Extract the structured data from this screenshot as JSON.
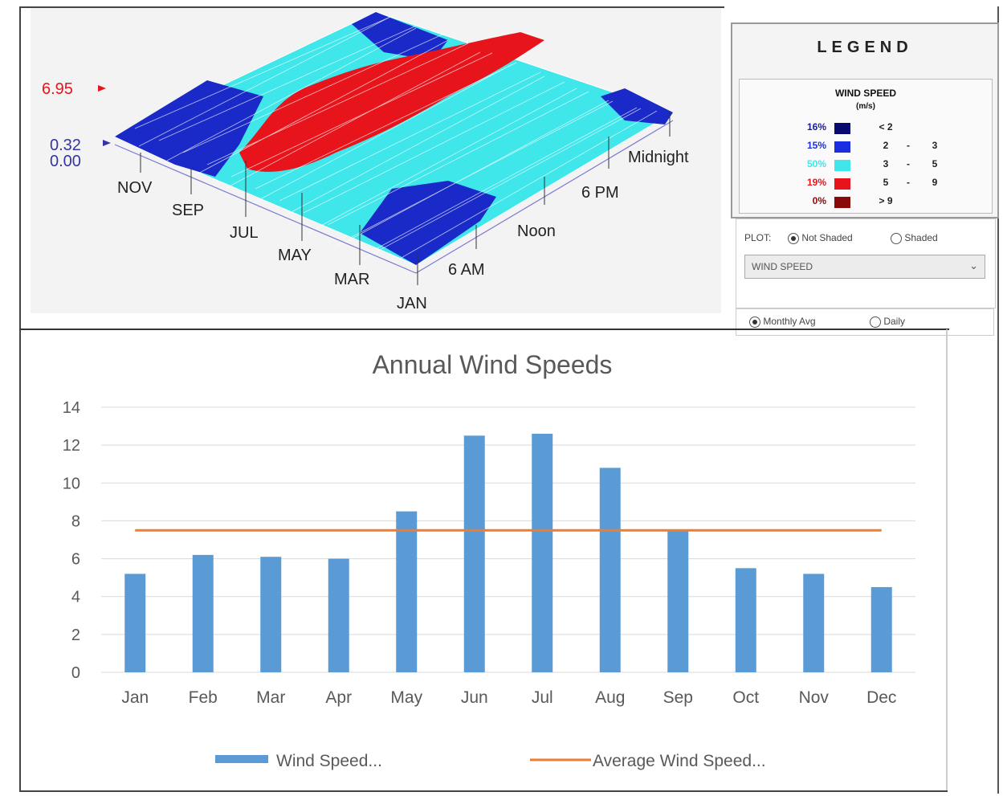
{
  "surface": {
    "value_marker_max": "6.95",
    "value_marker_mid": "0.32",
    "value_marker_min": "0.00",
    "month_labels": [
      "NOV",
      "SEP",
      "JUL",
      "MAY",
      "MAR",
      "JAN"
    ],
    "hour_labels": [
      "Midnight",
      "6 PM",
      "Noon",
      "6 AM"
    ]
  },
  "legend": {
    "title": "LEGEND",
    "heading": "WIND SPEED",
    "unit": "(m/s)",
    "rows": [
      {
        "pct": "16%",
        "color": "#0a0a6e",
        "r1": "< 2",
        "dash": "",
        "r2": "",
        "pct_color": "#1a1aa0"
      },
      {
        "pct": "15%",
        "color": "#1a2ee0",
        "r1": "2",
        "dash": "-",
        "r2": "3",
        "pct_color": "#1a2ee0"
      },
      {
        "pct": "50%",
        "color": "#3fe6ea",
        "r1": "3",
        "dash": "-",
        "r2": "5",
        "pct_color": "#3fe6ea"
      },
      {
        "pct": "19%",
        "color": "#e8141c",
        "r1": "5",
        "dash": "-",
        "r2": "9",
        "pct_color": "#e8141c"
      },
      {
        "pct": "0%",
        "color": "#8a0a0a",
        "r1": "> 9",
        "dash": "",
        "r2": "",
        "pct_color": "#8a0a0a"
      }
    ]
  },
  "plot_controls": {
    "label": "PLOT:",
    "option_not_shaded": "Not Shaded",
    "option_shaded": "Shaded",
    "selected_variable": "WIND SPEED",
    "option_monthly": "Monthly Avg",
    "option_daily": "Daily"
  },
  "chart_data": {
    "type": "bar",
    "title": "Annual Wind Speeds",
    "categories": [
      "Jan",
      "Feb",
      "Mar",
      "Apr",
      "May",
      "Jun",
      "Jul",
      "Aug",
      "Sep",
      "Oct",
      "Nov",
      "Dec"
    ],
    "series": [
      {
        "name": "Wind Speed...",
        "type": "bar",
        "color": "#5b9bd5",
        "values": [
          5.2,
          6.2,
          6.1,
          6.0,
          8.5,
          12.5,
          12.6,
          10.8,
          7.5,
          5.5,
          5.2,
          4.5
        ]
      },
      {
        "name": "Average Wind Speed...",
        "type": "line",
        "color": "#ed7d31",
        "values": [
          7.5,
          7.5,
          7.5,
          7.5,
          7.5,
          7.5,
          7.5,
          7.5,
          7.5,
          7.5,
          7.5,
          7.5
        ]
      }
    ],
    "ylim": [
      0,
      14
    ],
    "yticks": [
      0,
      2,
      4,
      6,
      8,
      10,
      12,
      14
    ],
    "grid": true,
    "legend_position": "bottom"
  }
}
